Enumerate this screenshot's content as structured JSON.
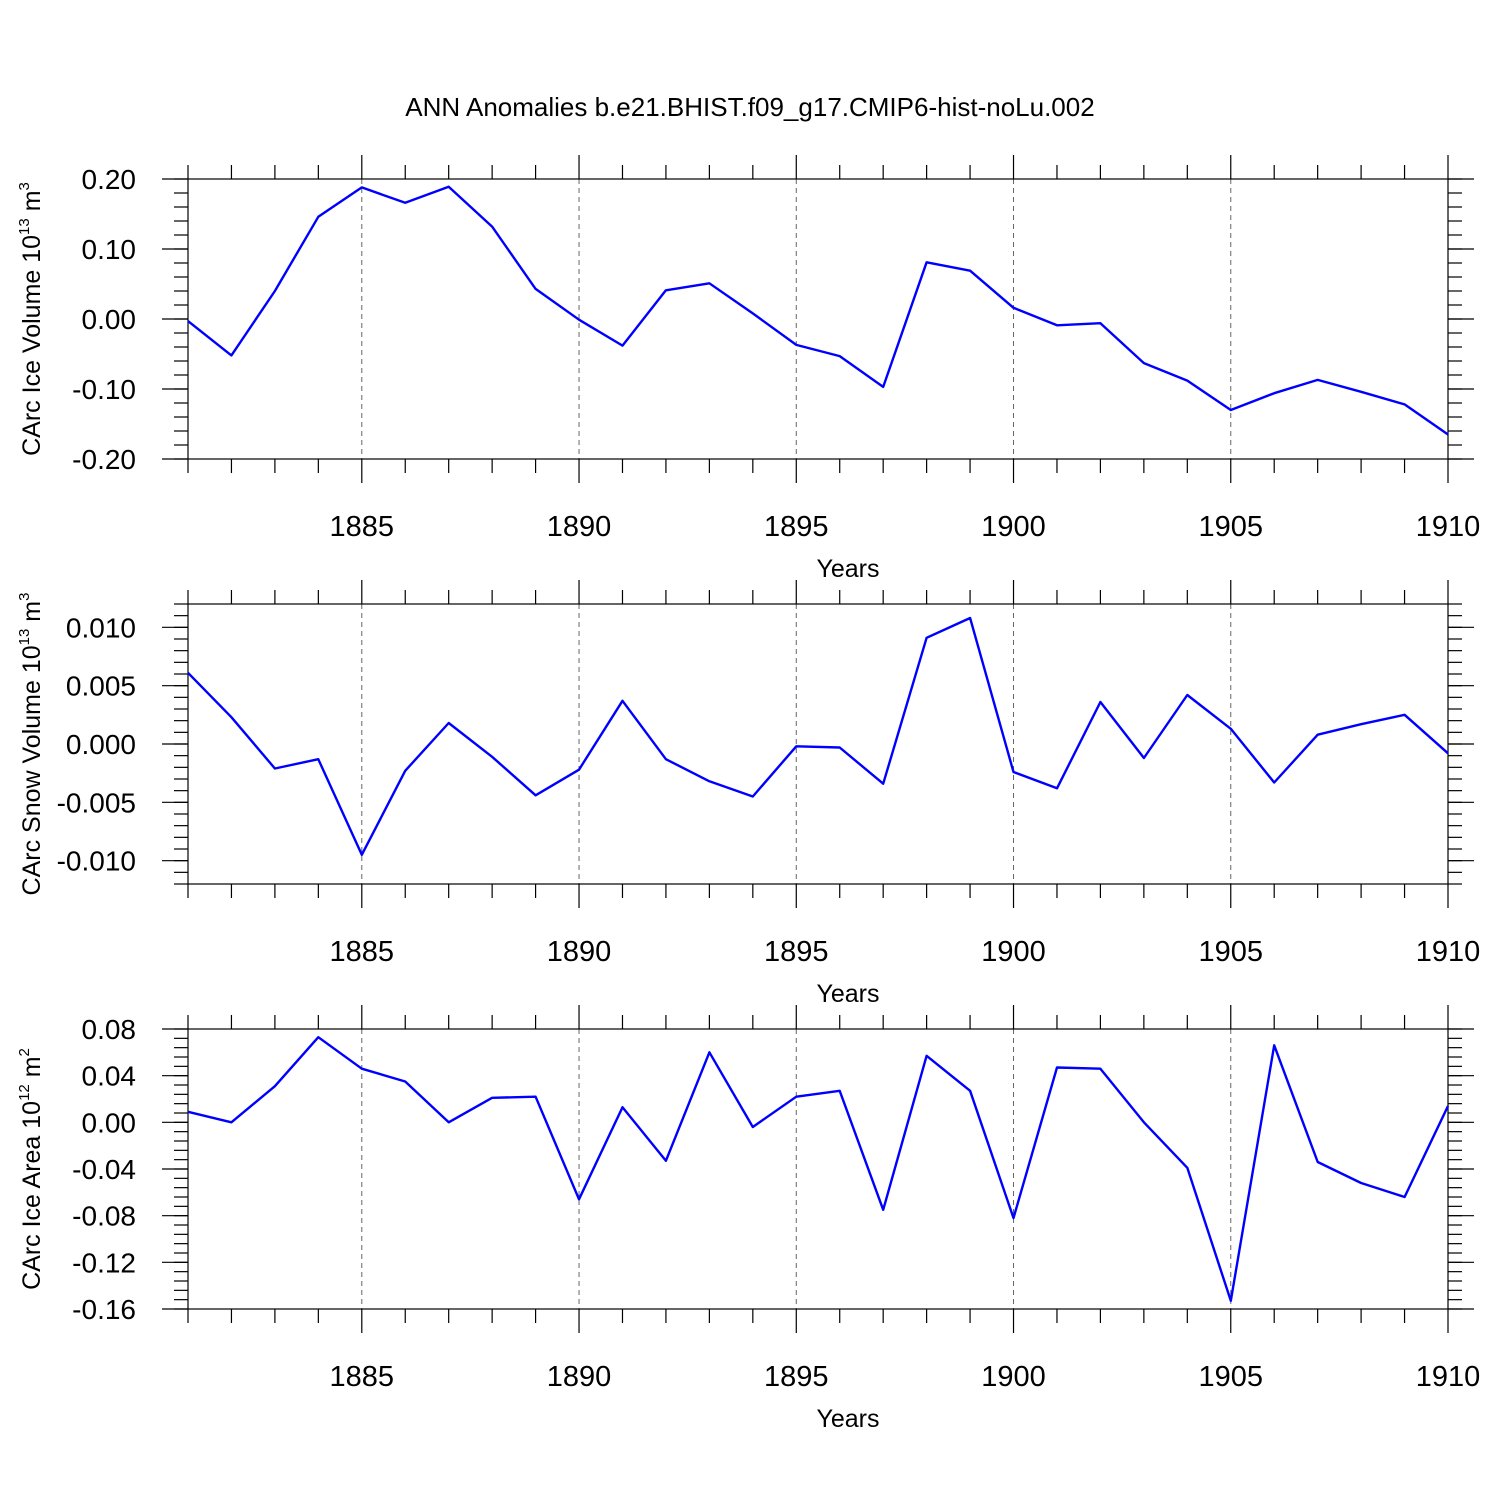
{
  "title": "ANN Anomalies b.e21.BHIST.f09_g17.CMIP6-hist-noLu.002",
  "colors": {
    "line": "#0000ff",
    "axis": "#000000",
    "grid": "#666666"
  },
  "chart_data": [
    {
      "type": "line",
      "xlabel": "Years",
      "ylabel": {
        "text": "CArc Ice Volume 10",
        "exponent": "13",
        "unit": "m",
        "unit_exponent": "3"
      },
      "x": [
        1881,
        1882,
        1883,
        1884,
        1885,
        1886,
        1887,
        1888,
        1889,
        1890,
        1891,
        1892,
        1893,
        1894,
        1895,
        1896,
        1897,
        1898,
        1899,
        1900,
        1901,
        1902,
        1903,
        1904,
        1905,
        1906,
        1907,
        1908,
        1909,
        1910
      ],
      "values": [
        -0.003,
        -0.052,
        0.04,
        0.146,
        0.188,
        0.166,
        0.189,
        0.132,
        0.043,
        -0.001,
        -0.038,
        0.041,
        0.051,
        0.008,
        -0.037,
        -0.053,
        -0.097,
        0.081,
        0.069,
        0.016,
        -0.009,
        -0.006,
        -0.063,
        -0.088,
        -0.13,
        -0.106,
        -0.087,
        -0.104,
        -0.122,
        -0.165
      ],
      "xlim": [
        1881,
        1910
      ],
      "ylim": [
        -0.2,
        0.2
      ],
      "x_ticks": [
        1885,
        1890,
        1895,
        1900,
        1905,
        1910
      ],
      "x_tick_labels": [
        "1885",
        "1890",
        "1895",
        "1900",
        "1905",
        "1910"
      ],
      "y_ticks": [
        -0.2,
        -0.1,
        0.0,
        0.1,
        0.2
      ],
      "y_tick_labels": [
        "-0.20",
        "-0.10",
        "0.00",
        "0.10",
        "0.20"
      ],
      "y_minor_step": 0.02,
      "grid": "vertical dashed at major x ticks"
    },
    {
      "type": "line",
      "xlabel": "Years",
      "ylabel": {
        "text": "CArc Snow Volume 10",
        "exponent": "13",
        "unit": "m",
        "unit_exponent": "3"
      },
      "x": [
        1881,
        1882,
        1883,
        1884,
        1885,
        1886,
        1887,
        1888,
        1889,
        1890,
        1891,
        1892,
        1893,
        1894,
        1895,
        1896,
        1897,
        1898,
        1899,
        1900,
        1901,
        1902,
        1903,
        1904,
        1905,
        1906,
        1907,
        1908,
        1909,
        1910
      ],
      "values": [
        0.0061,
        0.0023,
        -0.0021,
        -0.0013,
        -0.0095,
        -0.0023,
        0.0018,
        -0.0011,
        -0.0044,
        -0.0022,
        0.0037,
        -0.0013,
        -0.0032,
        -0.0045,
        -0.0002,
        -0.0003,
        -0.0034,
        0.0091,
        0.0108,
        -0.0024,
        -0.0038,
        0.0036,
        -0.0012,
        0.0042,
        0.0013,
        -0.0033,
        0.0008,
        0.0017,
        0.0025,
        -0.0008
      ],
      "xlim": [
        1881,
        1910
      ],
      "ylim": [
        -0.012,
        0.012
      ],
      "x_ticks": [
        1885,
        1890,
        1895,
        1900,
        1905,
        1910
      ],
      "x_tick_labels": [
        "1885",
        "1890",
        "1895",
        "1900",
        "1905",
        "1910"
      ],
      "y_ticks": [
        -0.01,
        -0.005,
        0.0,
        0.005,
        0.01
      ],
      "y_tick_labels": [
        "-0.010",
        "-0.005",
        "0.000",
        "0.005",
        "0.010"
      ],
      "y_minor_step": 0.001,
      "grid": "vertical dashed at major x ticks"
    },
    {
      "type": "line",
      "xlabel": "Years",
      "ylabel": {
        "text": "CArc Ice Area 10",
        "exponent": "12",
        "unit": "m",
        "unit_exponent": "2"
      },
      "x": [
        1881,
        1882,
        1883,
        1884,
        1885,
        1886,
        1887,
        1888,
        1889,
        1890,
        1891,
        1892,
        1893,
        1894,
        1895,
        1896,
        1897,
        1898,
        1899,
        1900,
        1901,
        1902,
        1903,
        1904,
        1905,
        1906,
        1907,
        1908,
        1909,
        1910
      ],
      "values": [
        0.009,
        0.0,
        0.031,
        0.073,
        0.046,
        0.035,
        0.0,
        0.021,
        0.022,
        -0.066,
        0.013,
        -0.033,
        0.06,
        -0.004,
        0.022,
        0.027,
        -0.075,
        0.057,
        0.027,
        -0.082,
        0.047,
        0.046,
        0.0,
        -0.039,
        -0.153,
        0.066,
        -0.034,
        -0.052,
        -0.064,
        0.014
      ],
      "xlim": [
        1881,
        1910
      ],
      "ylim": [
        -0.16,
        0.08
      ],
      "x_ticks": [
        1885,
        1890,
        1895,
        1900,
        1905,
        1910
      ],
      "x_tick_labels": [
        "1885",
        "1890",
        "1895",
        "1900",
        "1905",
        "1910"
      ],
      "y_ticks": [
        -0.16,
        -0.12,
        -0.08,
        -0.04,
        0.0,
        0.04,
        0.08
      ],
      "y_tick_labels": [
        "-0.16",
        "-0.12",
        "-0.08",
        "-0.04",
        "0.00",
        "0.04",
        "0.08"
      ],
      "y_minor_step": 0.008,
      "grid": "vertical dashed at major x ticks"
    }
  ]
}
